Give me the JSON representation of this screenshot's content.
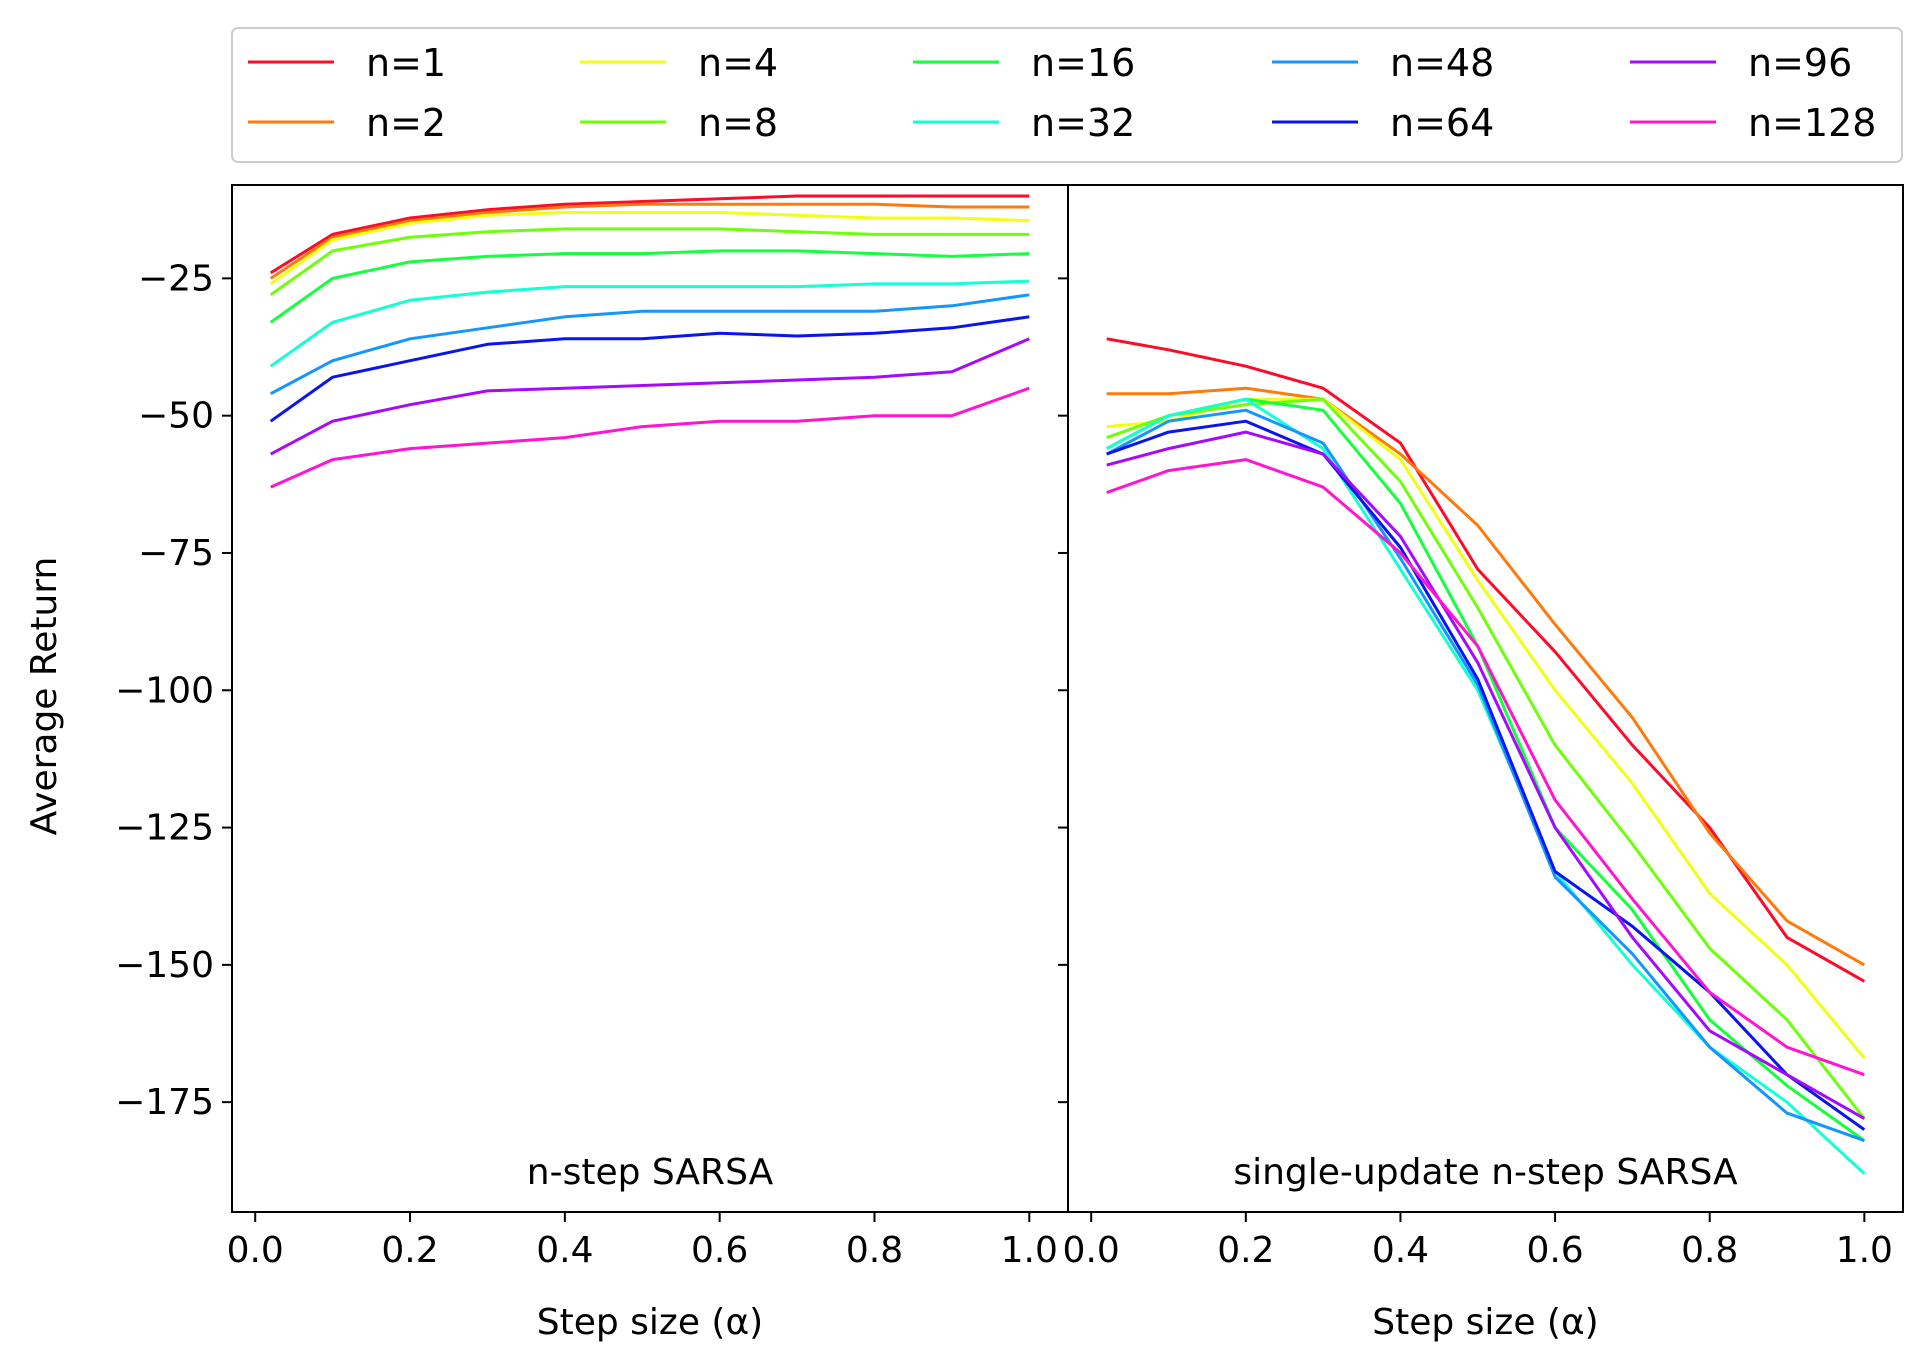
{
  "chart_data": [
    {
      "type": "line",
      "panel_label": "n-step SARSA",
      "xlabel": "Step size (α)",
      "ylabel": "Average Return",
      "xlim": [
        -0.03,
        1.05
      ],
      "ylim": [
        -195,
        -8
      ],
      "xticks": [
        0.0,
        0.2,
        0.4,
        0.6,
        0.8,
        1.0
      ],
      "xtick_labels": [
        "0.0",
        "0.2",
        "0.4",
        "0.6",
        "0.8",
        "1.0"
      ],
      "yticks": [
        -25,
        -50,
        -75,
        -100,
        -125,
        -150,
        -175
      ],
      "ytick_labels": [
        "−25",
        "−50",
        "−75",
        "−100",
        "−125",
        "−150",
        "−175"
      ],
      "x": [
        0.02,
        0.1,
        0.2,
        0.3,
        0.4,
        0.5,
        0.6,
        0.7,
        0.8,
        0.9,
        1.0
      ],
      "series": [
        {
          "name": "n=1",
          "color": "#ff0a28",
          "values": [
            -24,
            -17,
            -14,
            -12.5,
            -11.5,
            -11,
            -10.5,
            -10,
            -10,
            -10,
            -10
          ]
        },
        {
          "name": "n=2",
          "color": "#ff7a0a",
          "values": [
            -25,
            -17.5,
            -14.5,
            -13,
            -12,
            -11.5,
            -11.5,
            -11.5,
            -11.5,
            -12,
            -12
          ]
        },
        {
          "name": "n=4",
          "color": "#f0ff14",
          "values": [
            -26,
            -18,
            -15,
            -13.5,
            -13,
            -13,
            -13,
            -13.5,
            -14,
            -14,
            -14.5
          ]
        },
        {
          "name": "n=8",
          "color": "#6eff0a",
          "values": [
            -28,
            -20,
            -17.5,
            -16.5,
            -16,
            -16,
            -16,
            -16.5,
            -17,
            -17,
            -17
          ]
        },
        {
          "name": "n=16",
          "color": "#14ff3c",
          "values": [
            -33,
            -25,
            -22,
            -21,
            -20.5,
            -20.5,
            -20,
            -20,
            -20.5,
            -21,
            -20.5
          ]
        },
        {
          "name": "n=32",
          "color": "#14ffd2",
          "values": [
            -41,
            -33,
            -29,
            -27.5,
            -26.5,
            -26.5,
            -26.5,
            -26.5,
            -26,
            -26,
            -25.5
          ]
        },
        {
          "name": "n=48",
          "color": "#1496ff",
          "values": [
            -46,
            -40,
            -36,
            -34,
            -32,
            -31,
            -31,
            -31,
            -31,
            -30,
            -28
          ]
        },
        {
          "name": "n=64",
          "color": "#0a14f0",
          "values": [
            -51,
            -43,
            -40,
            -37,
            -36,
            -36,
            -35,
            -35.5,
            -35,
            -34,
            -32
          ]
        },
        {
          "name": "n=96",
          "color": "#a50aff",
          "values": [
            -57,
            -51,
            -48,
            -45.5,
            -45,
            -44.5,
            -44,
            -43.5,
            -43,
            -42,
            -36
          ]
        },
        {
          "name": "n=128",
          "color": "#ff14d2",
          "values": [
            -63,
            -58,
            -56,
            -55,
            -54,
            -52,
            -51,
            -51,
            -50,
            -50,
            -45
          ]
        }
      ]
    },
    {
      "type": "line",
      "panel_label": "single-update n-step SARSA",
      "xlabel": "Step size (α)",
      "xlim": [
        -0.03,
        1.05
      ],
      "ylim": [
        -195,
        -8
      ],
      "xticks": [
        0.0,
        0.2,
        0.4,
        0.6,
        0.8,
        1.0
      ],
      "xtick_labels": [
        "0.0",
        "0.2",
        "0.4",
        "0.6",
        "0.8",
        "1.0"
      ],
      "x": [
        0.02,
        0.1,
        0.2,
        0.3,
        0.4,
        0.5,
        0.6,
        0.7,
        0.8,
        0.9,
        1.0
      ],
      "series": [
        {
          "name": "n=1",
          "color": "#ff0a28",
          "values": [
            -36,
            -38,
            -41,
            -45,
            -55,
            -78,
            -93,
            -110,
            -125,
            -145,
            -153
          ]
        },
        {
          "name": "n=2",
          "color": "#ff7a0a",
          "values": [
            -46,
            -46,
            -45,
            -47,
            -57,
            -70,
            -88,
            -105,
            -126,
            -142,
            -150
          ]
        },
        {
          "name": "n=4",
          "color": "#f0ff14",
          "values": [
            -52,
            -51,
            -47,
            -47,
            -58,
            -80,
            -100,
            -117,
            -137,
            -150,
            -167
          ]
        },
        {
          "name": "n=8",
          "color": "#6eff0a",
          "values": [
            -54,
            -50,
            -48,
            -47,
            -62,
            -85,
            -110,
            -128,
            -147,
            -160,
            -178
          ]
        },
        {
          "name": "n=16",
          "color": "#14ff3c",
          "values": [
            -56,
            -50,
            -47,
            -49,
            -66,
            -92,
            -125,
            -140,
            -160,
            -172,
            -182
          ]
        },
        {
          "name": "n=32",
          "color": "#14ffd2",
          "values": [
            -56,
            -50,
            -47,
            -56,
            -78,
            -100,
            -133,
            -150,
            -165,
            -175,
            -188
          ]
        },
        {
          "name": "n=48",
          "color": "#1496ff",
          "values": [
            -57,
            -51,
            -49,
            -55,
            -76,
            -99,
            -134,
            -148,
            -165,
            -177,
            -182
          ]
        },
        {
          "name": "n=64",
          "color": "#0a14f0",
          "values": [
            -57,
            -53,
            -51,
            -57,
            -74,
            -98,
            -133,
            -143,
            -155,
            -170,
            -180
          ]
        },
        {
          "name": "n=96",
          "color": "#a50aff",
          "values": [
            -59,
            -56,
            -53,
            -57,
            -72,
            -95,
            -125,
            -145,
            -162,
            -170,
            -178
          ]
        },
        {
          "name": "n=128",
          "color": "#ff14d2",
          "values": [
            -64,
            -60,
            -58,
            -63,
            -75,
            -92,
            -120,
            -138,
            -155,
            -165,
            -170
          ]
        }
      ]
    }
  ]
}
